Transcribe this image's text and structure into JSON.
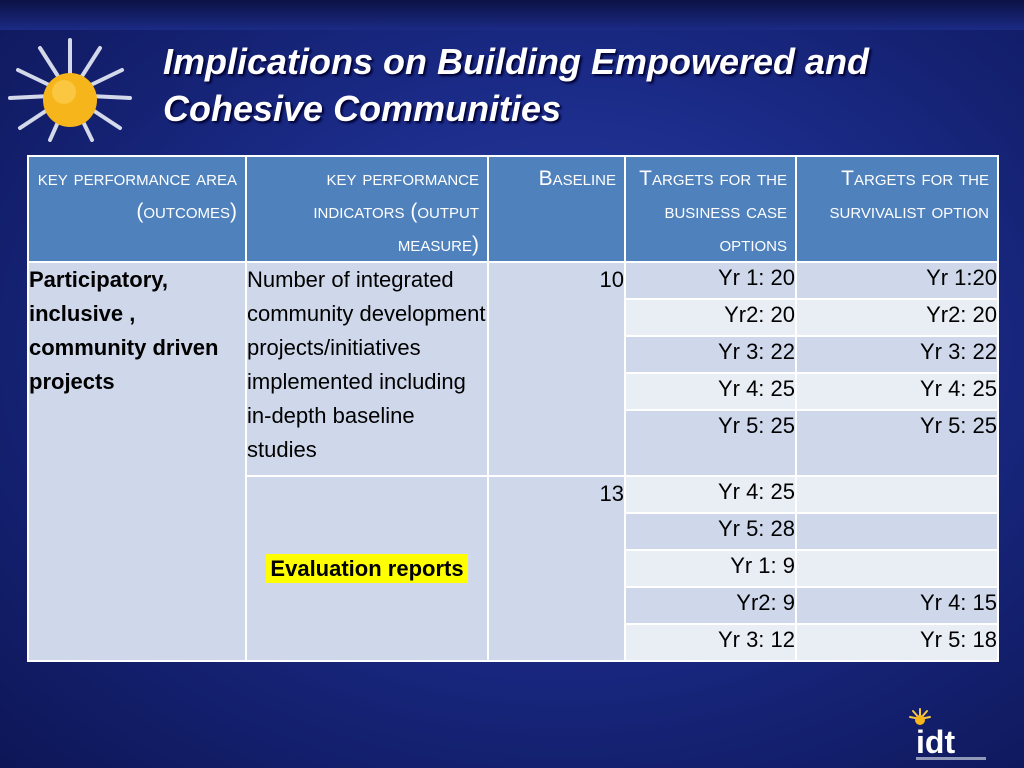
{
  "slide": {
    "title_line1": "Implications on Building Empowered and",
    "title_line2": "Cohesive Communities"
  },
  "table": {
    "headers": {
      "kpa": "key performance area (outcomes)",
      "kpi": "key performance indicators (output measure)",
      "baseline": "Baseline",
      "targets_business": "Targets for the business case options",
      "targets_survivalist": "Targets for the survivalist option"
    },
    "kpa_value": "Participatory, inclusive , community driven projects",
    "group1": {
      "indicator": "Number of integrated community development projects/initiatives implemented including in-depth baseline studies",
      "baseline": "10",
      "rows": [
        {
          "business": "Yr 1: 20",
          "survivalist": "Yr 1:20"
        },
        {
          "business": "Yr2: 20",
          "survivalist": "Yr2: 20"
        },
        {
          "business": "Yr 3: 22",
          "survivalist": "Yr 3: 22"
        },
        {
          "business": "Yr 4: 25",
          "survivalist": "Yr 4: 25"
        },
        {
          "business": "Yr 5: 25",
          "survivalist": "Yr 5: 25"
        }
      ]
    },
    "group2": {
      "indicator": "Evaluation reports",
      "baseline": "13",
      "rows": [
        {
          "business": "Yr 4: 25",
          "survivalist": ""
        },
        {
          "business": "Yr 5: 28",
          "survivalist": ""
        },
        {
          "business": "Yr 1: 9",
          "survivalist": ""
        },
        {
          "business": "Yr2: 9",
          "survivalist": "Yr 4: 15"
        },
        {
          "business": "Yr 3: 12",
          "survivalist": "Yr 5: 18"
        }
      ]
    }
  },
  "colors": {
    "header_fill": "#4f81bd",
    "cell_fill": "#cfd8eb",
    "highlight": "#ffff00"
  },
  "logo": {
    "icon": "idt-logo-icon",
    "text": "idt"
  }
}
